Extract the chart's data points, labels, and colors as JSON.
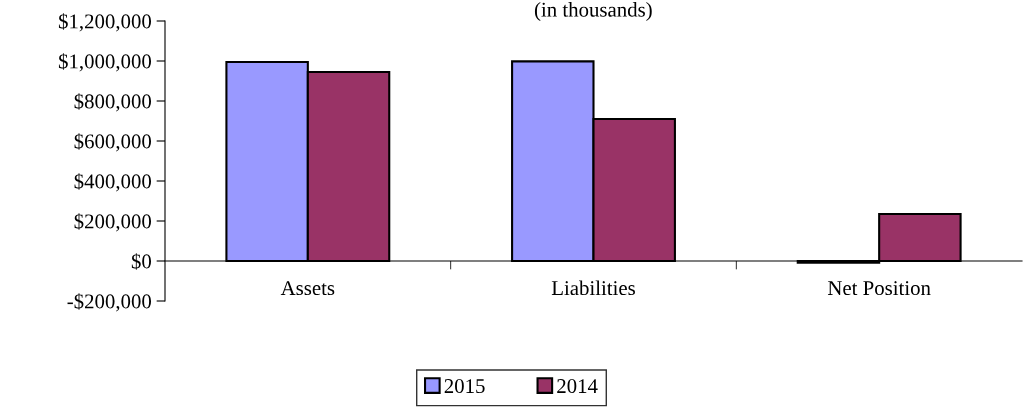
{
  "chart_data": {
    "type": "bar",
    "title": "(in thousands)",
    "categories": [
      "Assets",
      "Liabilities",
      "Net Position"
    ],
    "series": [
      {
        "name": "2015",
        "color": "#9999ff",
        "values": [
          995000,
          998000,
          -8000
        ]
      },
      {
        "name": "2014",
        "color": "#993366",
        "values": [
          945000,
          710000,
          235000
        ]
      }
    ],
    "ylim": [
      -200000,
      1200000
    ],
    "yticks": [
      {
        "value": -200000,
        "label": "-$200,000"
      },
      {
        "value": 0,
        "label": "$0"
      },
      {
        "value": 200000,
        "label": "$200,000"
      },
      {
        "value": 400000,
        "label": "$400,000"
      },
      {
        "value": 600000,
        "label": "$600,000"
      },
      {
        "value": 800000,
        "label": "$800,000"
      },
      {
        "value": 1000000,
        "label": "$1,000,000"
      },
      {
        "value": 1200000,
        "label": "$1,200,000"
      }
    ],
    "grid": false,
    "legend": "bottom"
  }
}
